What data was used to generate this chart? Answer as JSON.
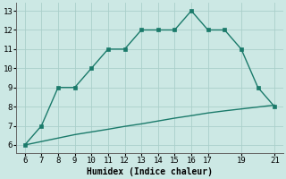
{
  "upper_x": [
    6,
    7,
    8,
    9,
    10,
    11,
    12,
    13,
    14,
    15,
    16,
    17,
    18,
    19,
    20,
    21
  ],
  "upper_y": [
    6,
    7,
    9,
    9,
    10,
    11,
    11,
    12,
    12,
    12,
    13,
    12,
    12,
    11,
    9,
    8
  ],
  "lower_x": [
    6,
    7,
    8,
    9,
    10,
    11,
    12,
    13,
    14,
    15,
    16,
    17,
    18,
    19,
    20,
    21
  ],
  "lower_y": [
    6.0,
    6.18,
    6.36,
    6.54,
    6.68,
    6.82,
    6.97,
    7.1,
    7.25,
    7.4,
    7.53,
    7.67,
    7.78,
    7.88,
    7.98,
    8.08
  ],
  "line_color": "#1a7a6a",
  "bg_color": "#cce8e4",
  "grid_color": "#aacfca",
  "xlabel": "Humidex (Indice chaleur)",
  "xlim": [
    5.5,
    21.5
  ],
  "ylim": [
    5.6,
    13.4
  ],
  "xticks": [
    6,
    7,
    8,
    9,
    10,
    11,
    12,
    13,
    14,
    15,
    16,
    17,
    19,
    21
  ],
  "xtick_labels": [
    "6",
    "7",
    "8",
    "9",
    "10",
    "11",
    "12",
    "13",
    "14",
    "15",
    "16",
    "17",
    "19",
    "21"
  ],
  "yticks": [
    6,
    7,
    8,
    9,
    10,
    11,
    12,
    13
  ],
  "marker_size": 2.5,
  "line_width": 1.0,
  "tick_fontsize": 6.5,
  "label_fontsize": 7.0,
  "fig_width": 3.2,
  "fig_height": 2.0,
  "dpi": 100
}
